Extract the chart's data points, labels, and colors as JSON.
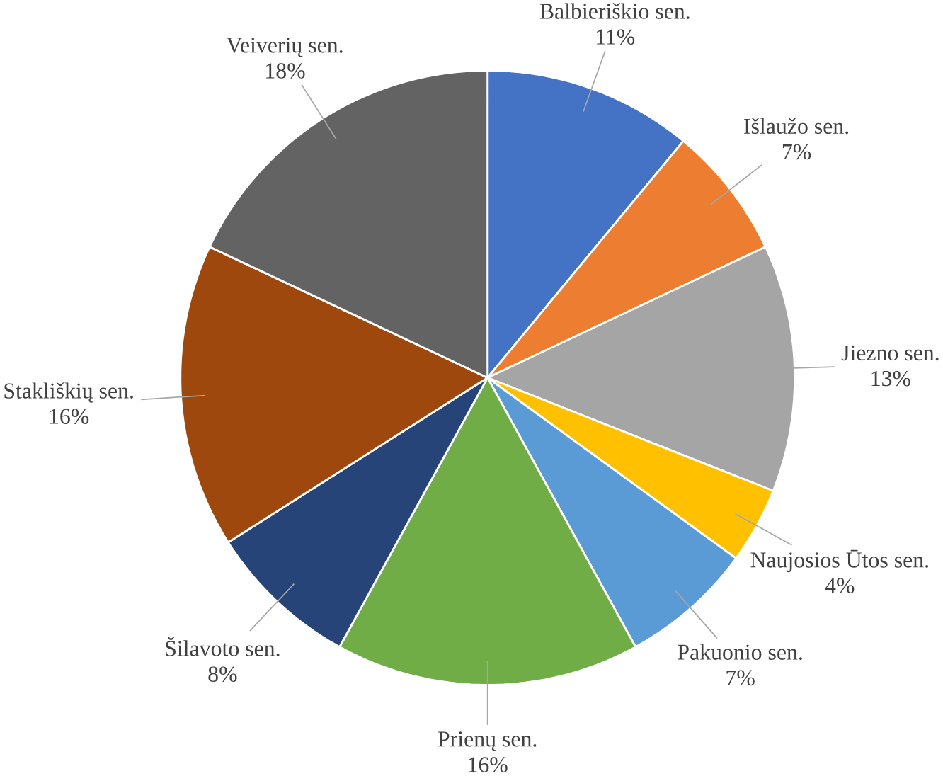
{
  "chart_data": {
    "type": "pie",
    "categories": [
      "Balbieriškio sen.",
      "Išlaužo sen.",
      "Jiezno sen.",
      "Naujosios Ūtos sen.",
      "Pakuonio sen.",
      "Prienų sen.",
      "Šilavoto sen.",
      "Stakliškių sen.",
      "Veiverių sen."
    ],
    "values": [
      11,
      7,
      13,
      4,
      7,
      16,
      8,
      16,
      18
    ],
    "value_labels": [
      "11%",
      "7%",
      "13%",
      "4%",
      "7%",
      "16%",
      "8%",
      "16%",
      "18%"
    ],
    "colors": [
      "#4472c4",
      "#ed7d31",
      "#a5a5a5",
      "#ffc000",
      "#5b9bd5",
      "#70ad47",
      "#264478",
      "#9e480e",
      "#636363"
    ]
  }
}
